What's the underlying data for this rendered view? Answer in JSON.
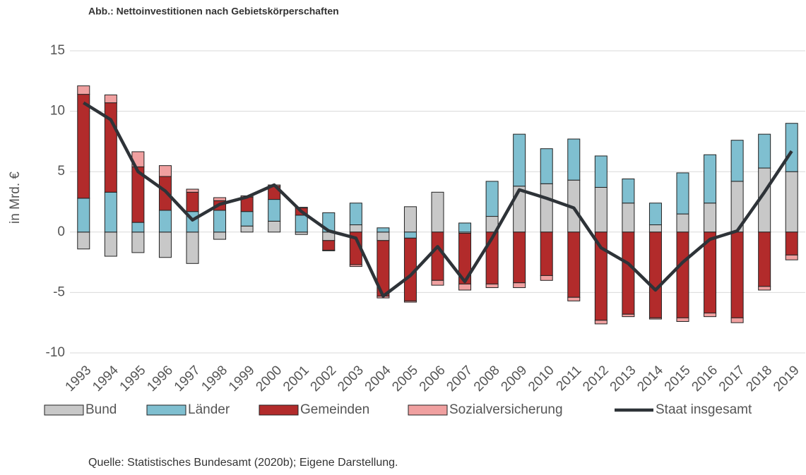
{
  "chart_data": {
    "type": "bar",
    "stacked": true,
    "title": "Abb.: Nettoinvestitionen nach Gebietskörperschaften",
    "ylabel": "in Mrd. €",
    "source": "Quelle: Statistisches Bundesamt (2020b); Eigene Darstellung.",
    "categories": [
      "1993",
      "1994",
      "1995",
      "1996",
      "1997",
      "1998",
      "1999",
      "2000",
      "2001",
      "2002",
      "2003",
      "2004",
      "2005",
      "2006",
      "2007",
      "2008",
      "2009",
      "2010",
      "2011",
      "2012",
      "2013",
      "2014",
      "2015",
      "2016",
      "2017",
      "2018",
      "2019"
    ],
    "ylim": [
      -10,
      15
    ],
    "yticks": [
      -10,
      -5,
      0,
      5,
      10,
      15
    ],
    "grid": true,
    "series": [
      {
        "name": "Bund",
        "color": "#c8c8c8",
        "values": [
          -1.4,
          -2.0,
          -1.7,
          -2.1,
          -2.6,
          -0.6,
          0.5,
          0.9,
          -0.2,
          -0.7,
          0.6,
          -0.7,
          2.1,
          3.3,
          -0.1,
          1.3,
          3.8,
          4.0,
          4.3,
          3.7,
          2.4,
          0.6,
          1.5,
          2.4,
          4.2,
          5.3,
          5.0
        ]
      },
      {
        "name": "Länder",
        "color": "#7fbfd0",
        "values": [
          2.8,
          3.3,
          0.8,
          1.8,
          1.7,
          1.8,
          1.2,
          1.8,
          1.4,
          1.6,
          1.8,
          0.35,
          -0.5,
          0,
          0.75,
          2.9,
          4.3,
          2.9,
          3.4,
          2.6,
          2.0,
          1.8,
          3.4,
          4.0,
          3.4,
          2.8,
          4.0
        ]
      },
      {
        "name": "Gemeinden",
        "color": "#b22b2b",
        "values": [
          8.6,
          7.4,
          4.6,
          2.8,
          1.6,
          0.8,
          1.2,
          1.1,
          0.6,
          -0.8,
          -2.7,
          -4.6,
          -5.2,
          -4.0,
          -4.2,
          -4.3,
          -4.2,
          -3.6,
          -5.4,
          -7.3,
          -6.8,
          -7.1,
          -7.1,
          -6.7,
          -7.1,
          -4.5,
          -1.9
        ]
      },
      {
        "name": "Sozialversicherung",
        "color": "#f0a0a0",
        "values": [
          0.7,
          0.65,
          1.25,
          0.9,
          0.25,
          0.25,
          0.1,
          0.1,
          0.05,
          -0.05,
          -0.15,
          -0.15,
          -0.1,
          -0.4,
          -0.5,
          -0.3,
          -0.4,
          -0.4,
          -0.3,
          -0.3,
          -0.2,
          -0.1,
          -0.3,
          -0.3,
          -0.4,
          -0.3,
          -0.4
        ]
      },
      {
        "name": "Staat insgesamt",
        "type": "line",
        "color": "#2e3338",
        "values": [
          10.7,
          9.3,
          5.0,
          3.4,
          1.0,
          2.3,
          2.9,
          3.9,
          1.7,
          0.1,
          -0.5,
          -5.3,
          -3.6,
          -1.2,
          -4.1,
          -0.5,
          3.5,
          2.8,
          2.0,
          -1.3,
          -2.6,
          -4.8,
          -2.5,
          -0.6,
          0.1,
          3.3,
          6.7
        ]
      }
    ]
  }
}
